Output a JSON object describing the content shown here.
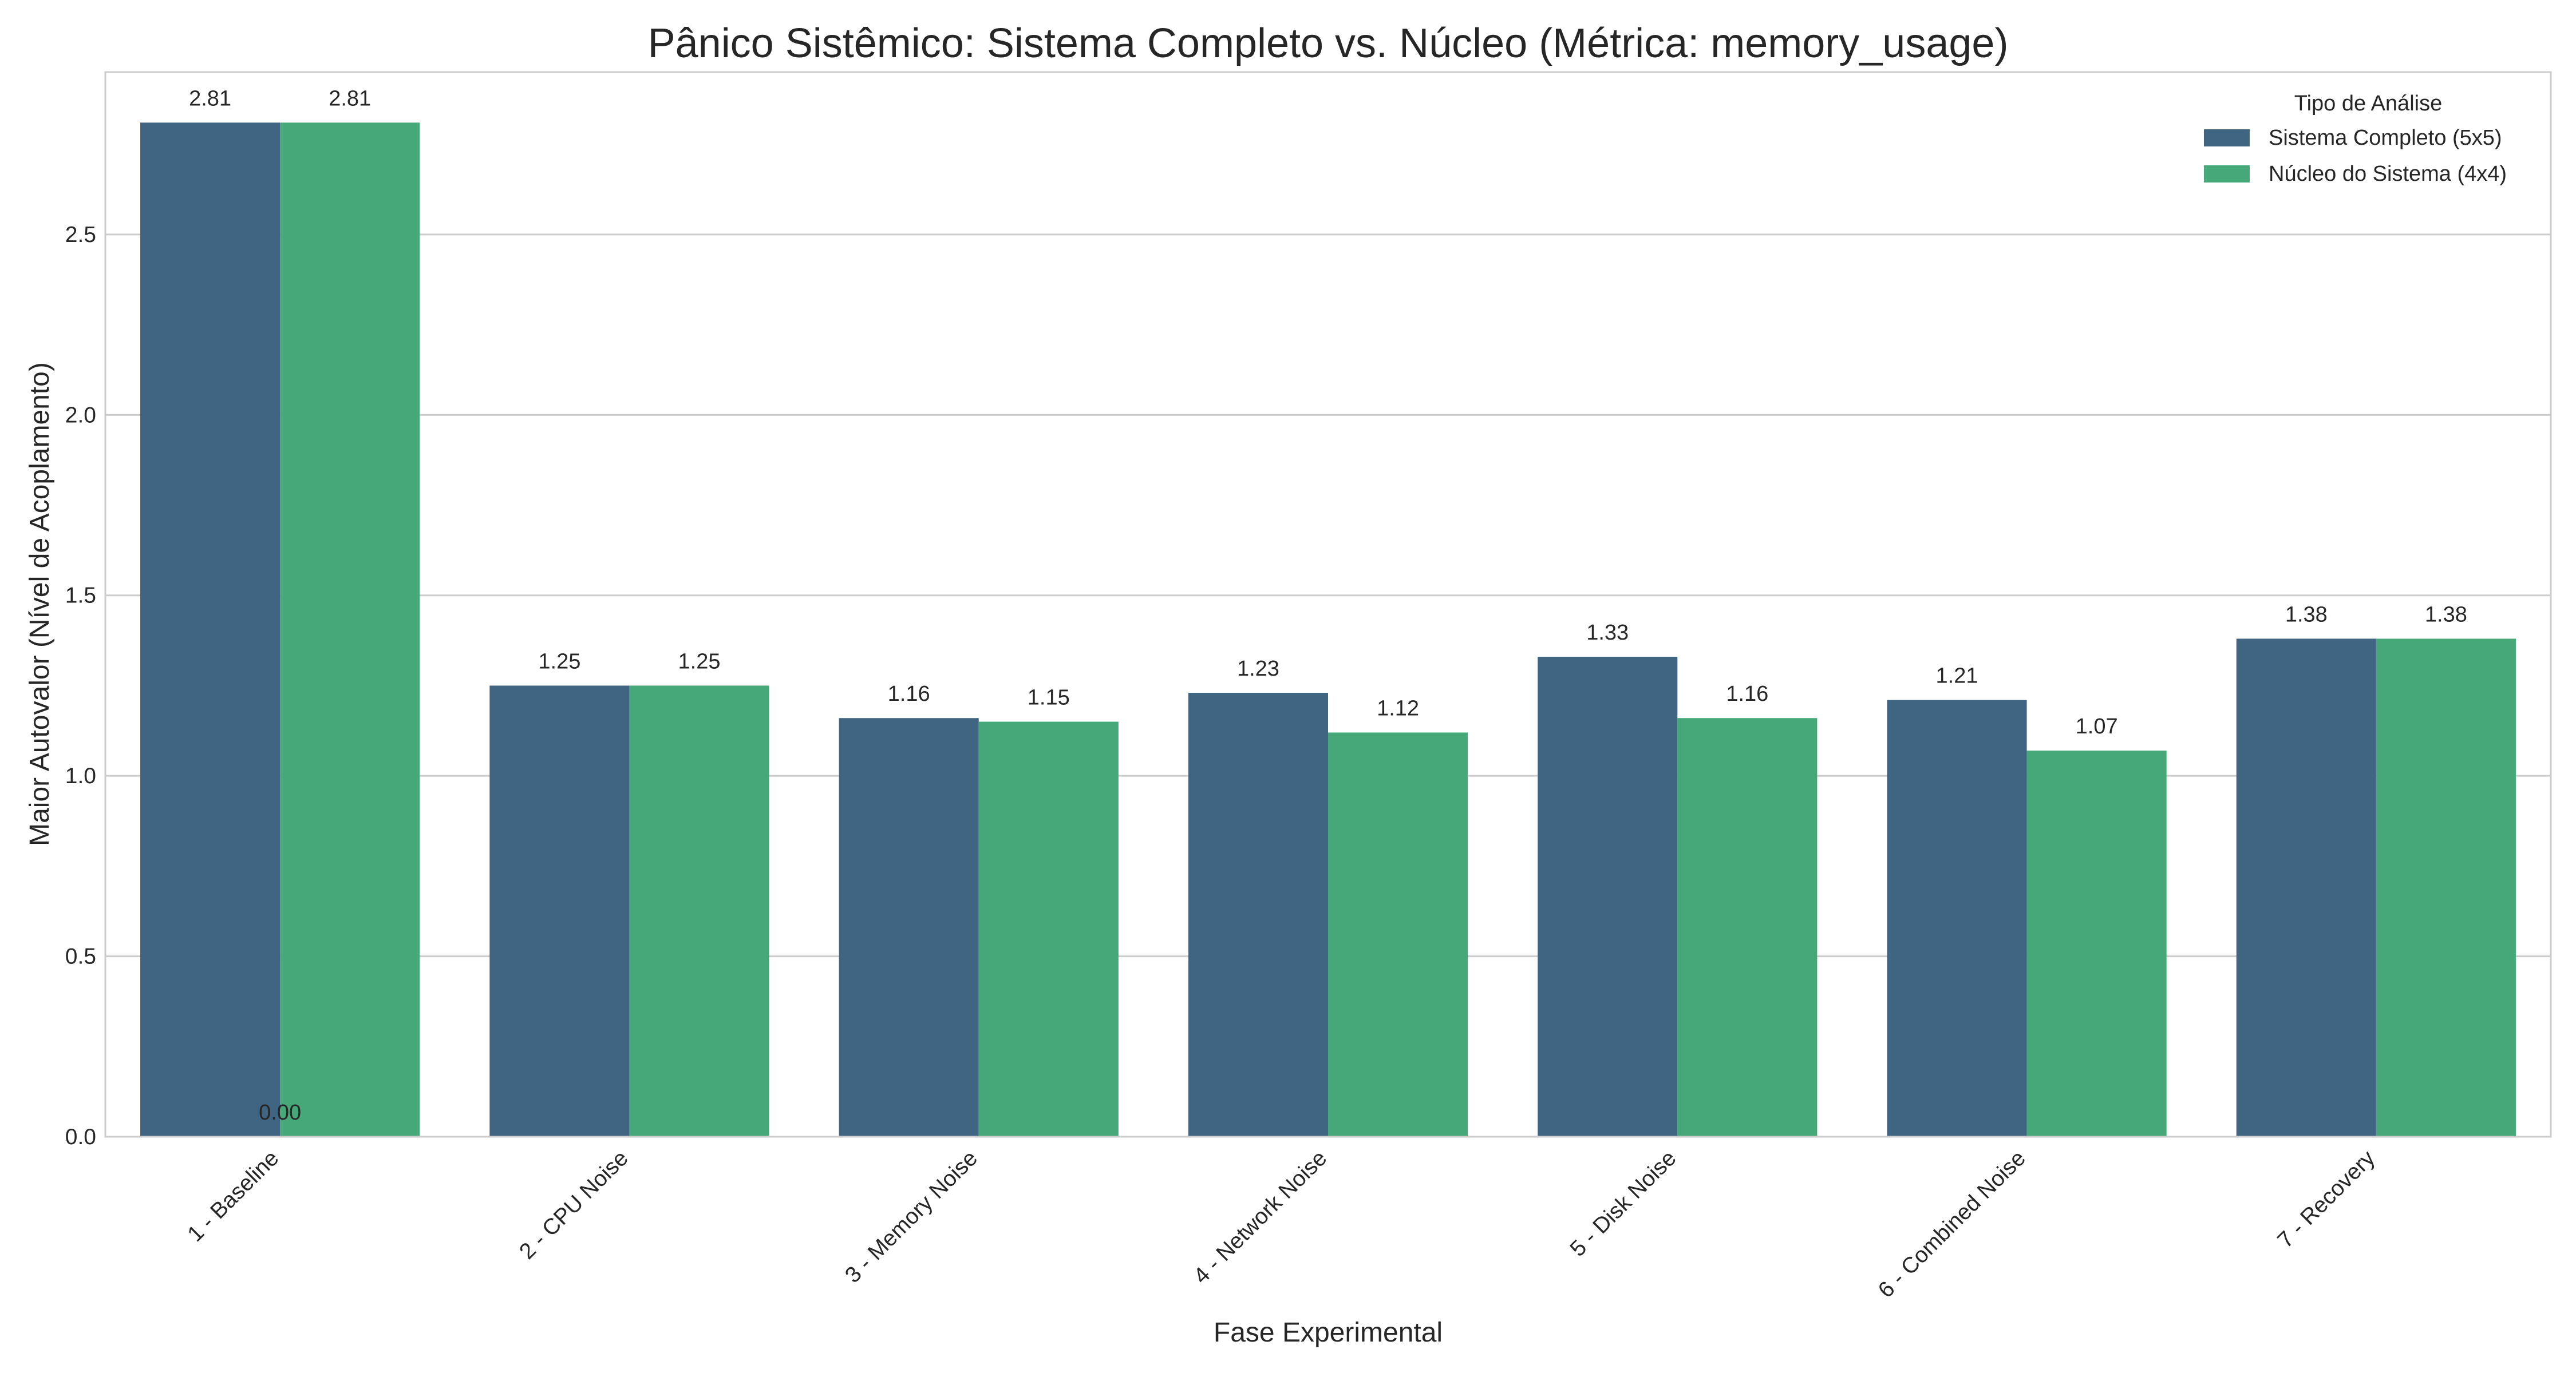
{
  "chart_data": {
    "type": "bar",
    "title": "Pânico Sistêmico: Sistema Completo vs. Núcleo (Métrica: memory_usage)",
    "xlabel": "Fase Experimental",
    "ylabel": "Maior Autovalor (Nível de Acoplamento)",
    "categories": [
      "1 - Baseline",
      "2 - CPU Noise",
      "3 - Memory Noise",
      "4 - Network Noise",
      "5 - Disk Noise",
      "6 - Combined Noise",
      "7 - Recovery"
    ],
    "series": [
      {
        "name": "Sistema Completo (5x5)",
        "color": "#3f6583",
        "values": [
          2.81,
          1.25,
          1.16,
          1.23,
          1.33,
          1.21,
          1.38
        ],
        "labels": [
          "2.81",
          "1.25",
          "1.16",
          "1.23",
          "1.33",
          "1.21",
          "1.38"
        ]
      },
      {
        "name": "Núcleo do Sistema (4x4)",
        "color": "#46a878",
        "values": [
          2.81,
          1.25,
          1.15,
          1.12,
          1.16,
          1.07,
          1.38
        ],
        "labels": [
          "2.81",
          "1.25",
          "1.15",
          "1.12",
          "1.16",
          "1.07",
          "1.38"
        ]
      }
    ],
    "extra_annotations": [
      {
        "text": "0.00",
        "category_index": 0,
        "value": 0.0
      }
    ],
    "ylim": [
      0,
      2.95
    ],
    "yticks": [
      0.0,
      0.5,
      1.0,
      1.5,
      2.0,
      2.5
    ],
    "ytick_labels": [
      "0.0",
      "0.5",
      "1.0",
      "1.5",
      "2.0",
      "2.5"
    ],
    "grid": "horizontal",
    "legend": {
      "title": "Tipo de Análise",
      "placement": "top-right"
    }
  }
}
